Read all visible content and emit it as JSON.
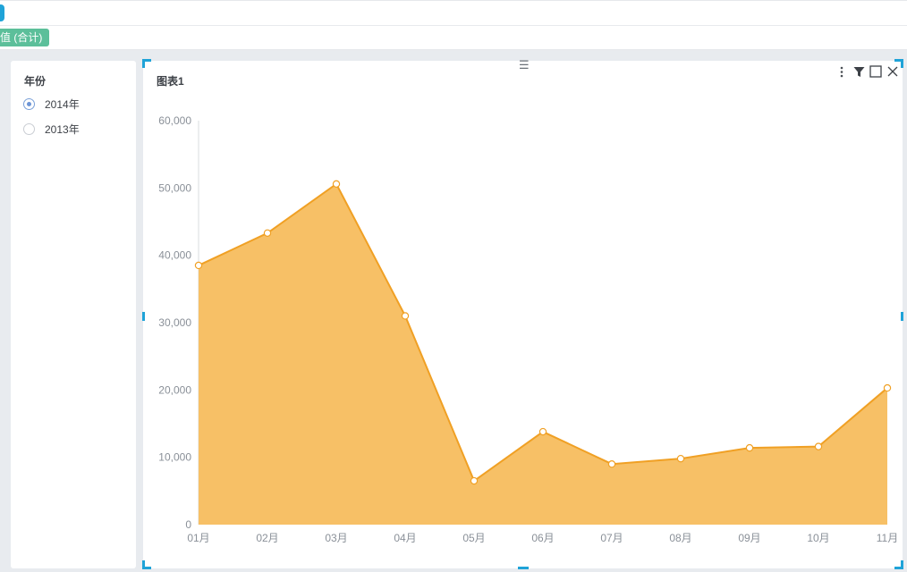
{
  "field_pill": "值 (合计)",
  "filter": {
    "title": "年份",
    "options": [
      {
        "label": "2014年",
        "checked": true
      },
      {
        "label": "2013年",
        "checked": false
      }
    ]
  },
  "chart": {
    "title": "图表1",
    "toolbar_icons": [
      "more-icon",
      "filter-icon",
      "maximize-icon",
      "close-icon"
    ]
  },
  "chart_data": {
    "type": "area",
    "title": "图表1",
    "categories": [
      "01月",
      "02月",
      "03月",
      "04月",
      "05月",
      "06月",
      "07月",
      "08月",
      "09月",
      "10月",
      "11月"
    ],
    "values": [
      38500,
      43300,
      50600,
      31000,
      6500,
      13800,
      9000,
      9800,
      11400,
      11600,
      20300
    ],
    "ylim": [
      0,
      60000
    ],
    "yticks": [
      "0",
      "10,000",
      "20,000",
      "30,000",
      "40,000",
      "50,000",
      "60,000"
    ],
    "fill_color": "#f7c066",
    "line_color": "#f0a024",
    "legend": "none",
    "grid": false
  }
}
